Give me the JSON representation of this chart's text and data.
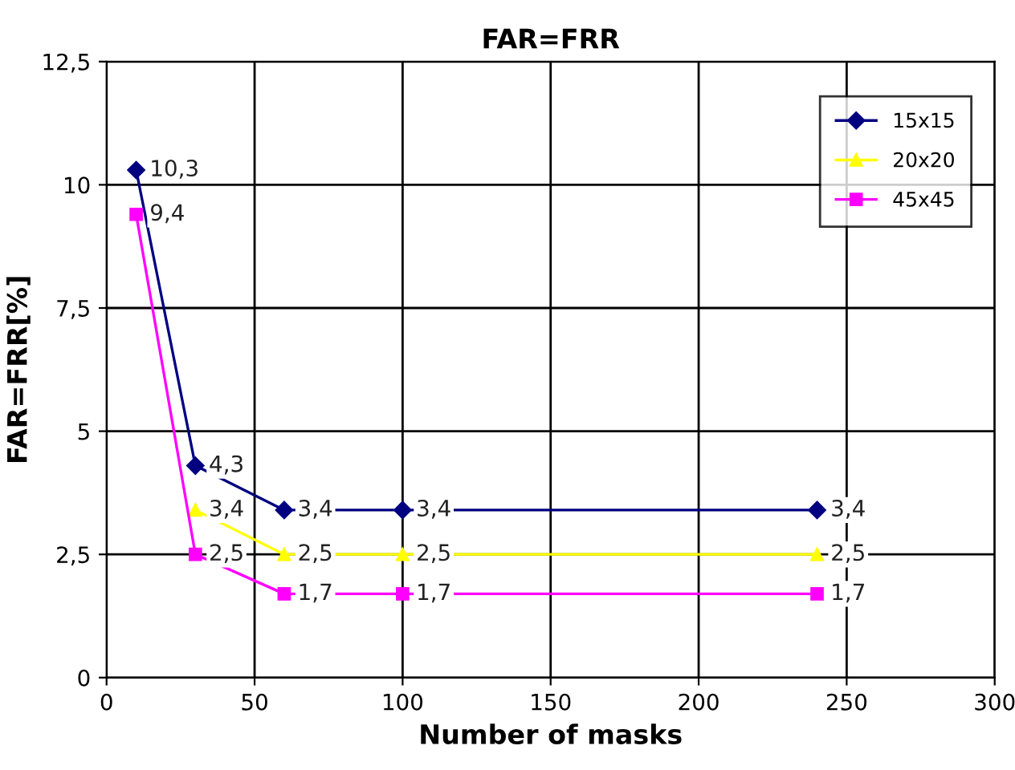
{
  "chart_data": {
    "type": "line",
    "title": "FAR=FRR",
    "xlabel": "Number of masks",
    "ylabel": "FAR=FRR[%]",
    "x": [
      10,
      30,
      60,
      100,
      240
    ],
    "series": [
      {
        "name": "15x15",
        "color": "#000080",
        "marker": "diamond",
        "values": [
          10.3,
          4.3,
          3.4,
          3.4,
          3.4
        ],
        "value_labels": [
          "10,3",
          "4,3",
          "3,4",
          "3,4",
          "3,4"
        ]
      },
      {
        "name": "20x20",
        "color": "#ffff00",
        "marker": "triangle",
        "values": [
          null,
          3.4,
          2.5,
          2.5,
          2.5
        ],
        "value_labels": [
          null,
          "3,4",
          "2,5",
          "2,5",
          "2,5"
        ]
      },
      {
        "name": "45x45",
        "color": "#ff00ff",
        "marker": "square",
        "values": [
          9.4,
          2.5,
          1.7,
          1.7,
          1.7
        ],
        "value_labels": [
          "9,4",
          "2,5",
          "1,7",
          "1,7",
          "1,7"
        ]
      }
    ],
    "xlim": [
      0,
      300
    ],
    "xticks": [
      0,
      50,
      100,
      150,
      200,
      250,
      300
    ],
    "ylim": [
      0,
      12.5
    ],
    "yticks": [
      0,
      {
        "value": 2.5,
        "label": "2,5"
      },
      5,
      {
        "value": 7.5,
        "label": "7,5"
      },
      10,
      {
        "value": 12.5,
        "label": "12,5"
      }
    ],
    "grid": true,
    "legend": "top right",
    "line_style": "solid"
  }
}
